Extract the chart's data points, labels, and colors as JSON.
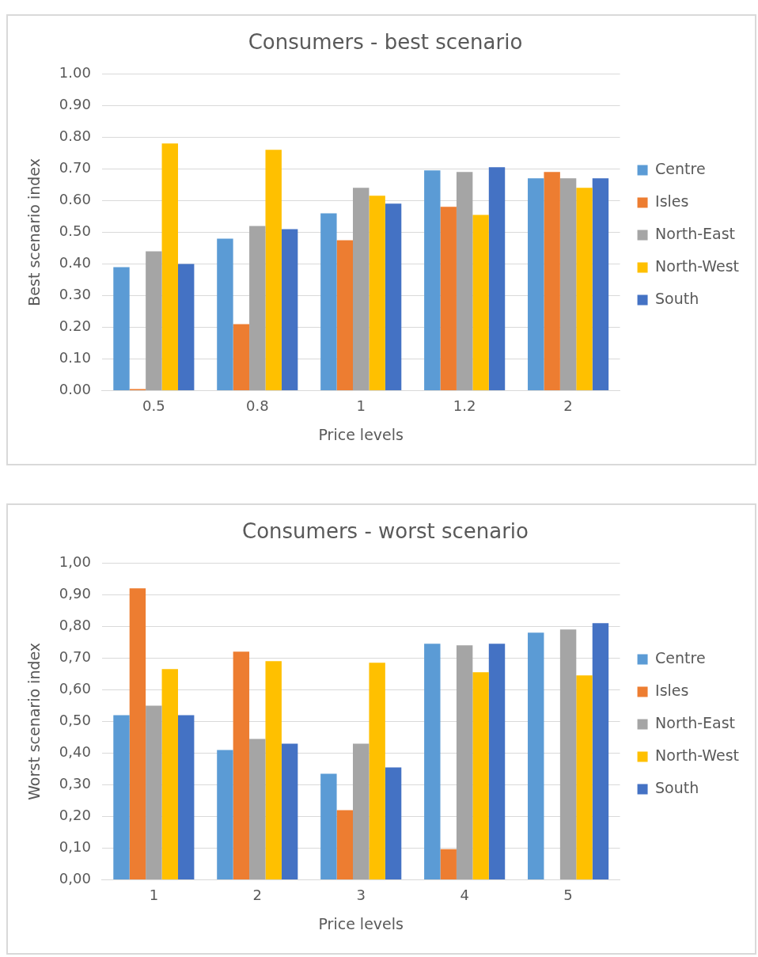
{
  "chart_data": [
    {
      "type": "bar",
      "title": "Consumers - best scenario",
      "xlabel": "Price levels",
      "ylabel": "Best scenario index",
      "categories": [
        "0.5",
        "0.8",
        "1",
        "1.2",
        "2"
      ],
      "series": [
        {
          "name": "Centre",
          "color": "#5b9bd5",
          "values": [
            0.39,
            0.48,
            0.56,
            0.695,
            0.67
          ]
        },
        {
          "name": "Isles",
          "color": "#ed7d31",
          "values": [
            0.005,
            0.21,
            0.475,
            0.58,
            0.69
          ]
        },
        {
          "name": "North-East",
          "color": "#a5a5a5",
          "values": [
            0.44,
            0.52,
            0.64,
            0.69,
            0.67
          ]
        },
        {
          "name": "North-West",
          "color": "#ffc000",
          "values": [
            0.78,
            0.76,
            0.615,
            0.555,
            0.64
          ]
        },
        {
          "name": "South",
          "color": "#4472c4",
          "values": [
            0.4,
            0.51,
            0.59,
            0.705,
            0.67
          ]
        }
      ],
      "ylim": [
        0,
        1
      ],
      "yticks": [
        {
          "value": 0,
          "label": "0.00"
        },
        {
          "value": 0.1,
          "label": "0.10"
        },
        {
          "value": 0.2,
          "label": "0.20"
        },
        {
          "value": 0.3,
          "label": "0.30"
        },
        {
          "value": 0.4,
          "label": "0.40"
        },
        {
          "value": 0.5,
          "label": "0.50"
        },
        {
          "value": 0.6,
          "label": "0.60"
        },
        {
          "value": 0.7,
          "label": "0.70"
        },
        {
          "value": 0.8,
          "label": "0.80"
        },
        {
          "value": 0.9,
          "label": "0.90"
        },
        {
          "value": 1,
          "label": "1.00"
        }
      ],
      "grid": "y",
      "legend": "right"
    },
    {
      "type": "bar",
      "title": "Consumers - worst scenario",
      "xlabel": "Price levels",
      "ylabel": "Worst scenario index",
      "categories": [
        "1",
        "2",
        "3",
        "4",
        "5"
      ],
      "series": [
        {
          "name": "Centre",
          "color": "#5b9bd5",
          "values": [
            0.52,
            0.41,
            0.335,
            0.745,
            0.78
          ]
        },
        {
          "name": "Isles",
          "color": "#ed7d31",
          "values": [
            0.92,
            0.72,
            0.22,
            0.097,
            0
          ]
        },
        {
          "name": "North-East",
          "color": "#a5a5a5",
          "values": [
            0.55,
            0.445,
            0.43,
            0.74,
            0.79
          ]
        },
        {
          "name": "North-West",
          "color": "#ffc000",
          "values": [
            0.665,
            0.69,
            0.685,
            0.655,
            0.645
          ]
        },
        {
          "name": "South",
          "color": "#4472c4",
          "values": [
            0.52,
            0.43,
            0.355,
            0.745,
            0.81
          ]
        }
      ],
      "ylim": [
        0,
        1
      ],
      "yticks": [
        {
          "value": 0,
          "label": "0,00"
        },
        {
          "value": 0.1,
          "label": "0,10"
        },
        {
          "value": 0.2,
          "label": "0,20"
        },
        {
          "value": 0.3,
          "label": "0,30"
        },
        {
          "value": 0.4,
          "label": "0,40"
        },
        {
          "value": 0.5,
          "label": "0,50"
        },
        {
          "value": 0.6,
          "label": "0,60"
        },
        {
          "value": 0.7,
          "label": "0,70"
        },
        {
          "value": 0.8,
          "label": "0,80"
        },
        {
          "value": 0.9,
          "label": "0,90"
        },
        {
          "value": 1,
          "label": "1,00"
        }
      ],
      "grid": "y",
      "legend": "right"
    }
  ]
}
